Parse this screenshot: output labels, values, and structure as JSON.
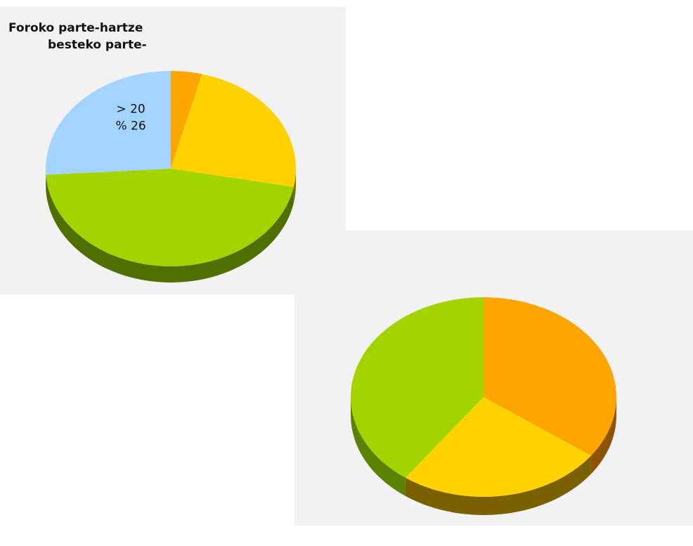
{
  "chart_data": [
    {
      "type": "pie",
      "title_lines": [
        "Foroko parte-hartze",
        "besteko parte-"
      ],
      "slices": [
        {
          "value": 4,
          "color": "#ffa500",
          "side_color": "#b86f00"
        },
        {
          "value": 24,
          "color": "#ffd200",
          "side_color": "#8a6e00"
        },
        {
          "value": 46,
          "color": "#a3d400",
          "side_color": "#4f7000"
        },
        {
          "value": 26,
          "color": "#a3d3ff",
          "side_color": "#5f8fb8"
        }
      ],
      "annotations": [
        {
          "label": "> 20",
          "percent": "% 26",
          "slice": 3
        }
      ]
    },
    {
      "type": "pie",
      "slices": [
        {
          "value": 35,
          "color": "#ffa500",
          "side_color": "#8f5400"
        },
        {
          "value": 25,
          "color": "#ffd200",
          "side_color": "#7a6000"
        },
        {
          "value": 40,
          "color": "#a3d400",
          "side_color": "#5b8200"
        }
      ]
    }
  ]
}
